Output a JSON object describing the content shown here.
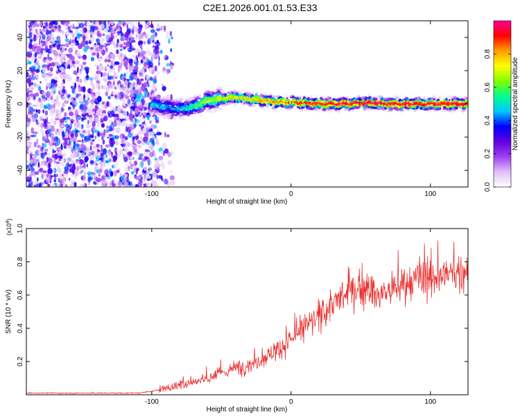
{
  "title": "C2E1.2026.001.01.53.E33",
  "chart_data": [
    {
      "type": "heatmap",
      "xlabel": "Height of straight line (km)",
      "ylabel": "Frequency (Hz)",
      "xlim": [
        -190,
        127
      ],
      "ylim": [
        -50,
        50
      ],
      "x_ticks": [
        -100,
        0,
        100
      ],
      "y_ticks": [
        -40,
        -20,
        0,
        20,
        40
      ],
      "colorbar": {
        "label": "Normalized spectral amplitude",
        "range": [
          0,
          1
        ],
        "ticks": [
          0.0,
          0.2,
          0.4,
          0.6,
          0.8
        ],
        "colors": [
          "#ffffff",
          "#e0c0f8",
          "#a040f0",
          "#6000e0",
          "#0000ff",
          "#00c8ff",
          "#00ff90",
          "#80ff00",
          "#ffff00",
          "#ffa000",
          "#ff0000",
          "#ff0090"
        ]
      },
      "noise_region_km": [
        -190,
        -95
      ],
      "ridge": {
        "x": [
          -100,
          -90,
          -80,
          -70,
          -60,
          -50,
          -40,
          -30,
          -20,
          -10,
          0,
          10,
          20,
          30,
          40,
          50,
          60,
          70,
          80,
          90,
          100,
          110,
          120,
          127
        ],
        "frequency_hz": [
          0,
          -2,
          -3,
          -2,
          2,
          3,
          4,
          3,
          2,
          1,
          1,
          0.5,
          0,
          0,
          0,
          0.5,
          0.5,
          0,
          0,
          0,
          0,
          0,
          0,
          0
        ],
        "peak_amplitude": [
          0.5,
          0.45,
          0.45,
          0.55,
          0.65,
          0.7,
          0.75,
          0.75,
          0.8,
          0.85,
          0.85,
          0.9,
          0.92,
          0.95,
          0.95,
          0.95,
          0.95,
          0.95,
          0.95,
          0.95,
          0.95,
          0.95,
          0.95,
          0.95
        ]
      }
    },
    {
      "type": "line",
      "xlabel": "Height of straight line (km)",
      "ylabel": "SNR (10 * v/v)",
      "y_multiplier": "(x10",
      "y_multiplier_exp": "4",
      "y_multiplier_close": ")",
      "xlim": [
        -190,
        127
      ],
      "ylim": [
        0,
        1.0
      ],
      "x_ticks": [
        -100,
        0,
        100
      ],
      "y_ticks": [
        0.2,
        0.4,
        0.6,
        0.8,
        1.0
      ],
      "color": "#e83030",
      "series": [
        {
          "x": [
            -190,
            -180,
            -170,
            -160,
            -150,
            -140,
            -130,
            -120,
            -110,
            -100,
            -90,
            -80,
            -70,
            -60,
            -50,
            -40,
            -30,
            -20,
            -10,
            0,
            10,
            20,
            30,
            40,
            50,
            60,
            70,
            80,
            90,
            100,
            110,
            120,
            127
          ],
          "values": [
            0.01,
            0.01,
            0.01,
            0.01,
            0.01,
            0.01,
            0.01,
            0.01,
            0.01,
            0.02,
            0.04,
            0.06,
            0.08,
            0.1,
            0.13,
            0.16,
            0.18,
            0.22,
            0.27,
            0.33,
            0.4,
            0.47,
            0.55,
            0.6,
            0.65,
            0.6,
            0.62,
            0.66,
            0.68,
            0.7,
            0.72,
            0.73,
            0.75
          ]
        }
      ]
    }
  ]
}
